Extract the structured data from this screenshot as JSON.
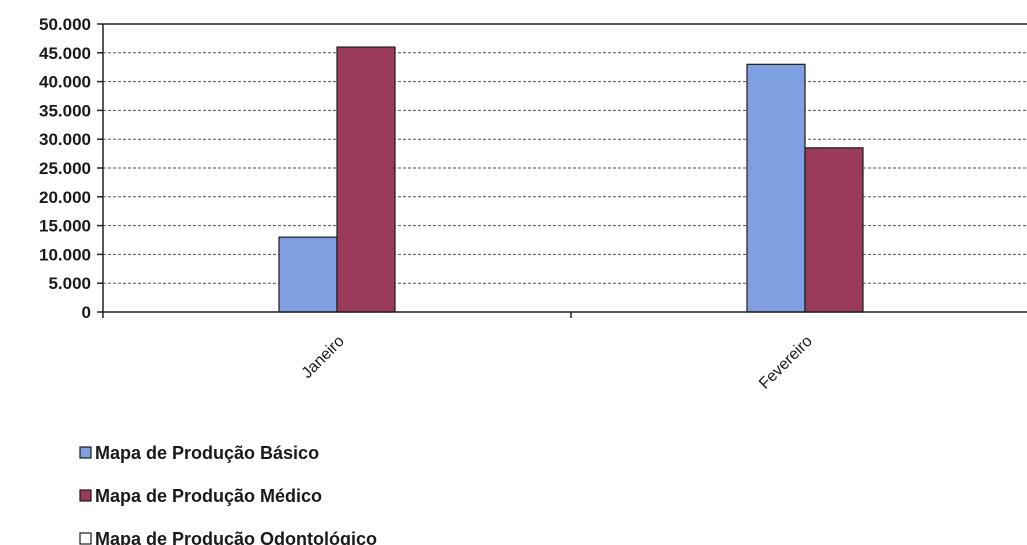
{
  "chart_data": {
    "type": "bar",
    "categories": [
      "Janeiro",
      "Fevereiro"
    ],
    "series": [
      {
        "name": "Mapa de Produção Básico",
        "values": [
          13000,
          43000
        ],
        "color": "#7f9fe0"
      },
      {
        "name": "Mapa de Produção Médico",
        "values": [
          46000,
          28500
        ],
        "color": "#9b3b5c"
      },
      {
        "name": "Mapa de Produção Odontológico",
        "values": [
          0,
          0
        ],
        "color": "#ffffff"
      }
    ],
    "ylim": [
      0,
      50000
    ],
    "yticks": [
      0,
      5000,
      10000,
      15000,
      20000,
      25000,
      30000,
      35000,
      40000,
      45000,
      50000
    ],
    "ytick_labels": [
      "0",
      "5.000",
      "10.000",
      "15.000",
      "20.000",
      "25.000",
      "30.000",
      "35.000",
      "40.000",
      "45.000",
      "50.000"
    ],
    "title": "",
    "xlabel": "",
    "ylabel": "",
    "grid": true,
    "legend_position": "bottom-left"
  }
}
